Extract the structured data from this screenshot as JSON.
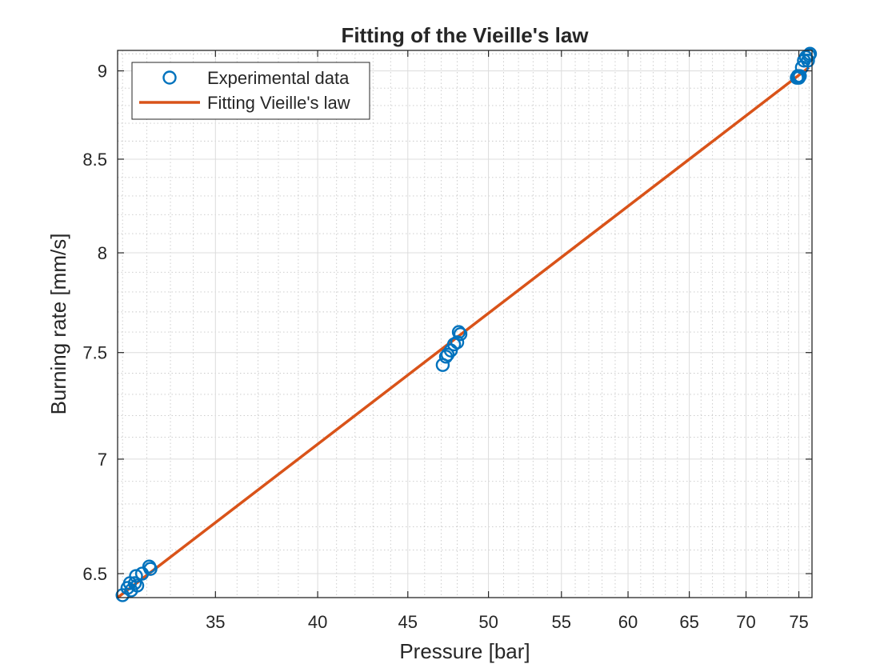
{
  "chart_data": {
    "type": "scatter",
    "title": "Fitting of the Vieille's law",
    "xlabel": "Pressure [bar]",
    "ylabel": "Burning rate [mm/s]",
    "x_scale": "log",
    "y_scale": "log",
    "xlim": [
      30.8,
      76.3
    ],
    "ylim": [
      6.4,
      9.12
    ],
    "xticks": [
      35,
      40,
      45,
      50,
      55,
      60,
      65,
      70,
      75
    ],
    "yticks": [
      6.5,
      7,
      7.5,
      8,
      8.5,
      9
    ],
    "xtick_labels": [
      "35",
      "40",
      "45",
      "50",
      "55",
      "60",
      "65",
      "70",
      "75"
    ],
    "ytick_labels": [
      "6.5",
      "7",
      "7.5",
      "8",
      "8.5",
      "9"
    ],
    "grid": true,
    "minor_grid": true,
    "legend": {
      "position": "top-left",
      "entries": [
        {
          "label": "Experimental data",
          "marker": "circle",
          "color": "#0072BD"
        },
        {
          "label": "Fitting Vieille's law",
          "marker": "line",
          "color": "#D95319"
        }
      ]
    },
    "series": [
      {
        "name": "Experimental data",
        "kind": "scatter",
        "color": "#0072BD",
        "points": [
          [
            31.0,
            6.41
          ],
          [
            31.2,
            6.44
          ],
          [
            31.3,
            6.46
          ],
          [
            31.35,
            6.43
          ],
          [
            31.5,
            6.46
          ],
          [
            31.55,
            6.49
          ],
          [
            31.6,
            6.45
          ],
          [
            31.8,
            6.5
          ],
          [
            32.1,
            6.53
          ],
          [
            32.15,
            6.52
          ],
          [
            47.1,
            7.44
          ],
          [
            47.3,
            7.48
          ],
          [
            47.4,
            7.49
          ],
          [
            47.6,
            7.51
          ],
          [
            47.8,
            7.54
          ],
          [
            48.0,
            7.55
          ],
          [
            48.1,
            7.6
          ],
          [
            48.2,
            7.59
          ],
          [
            74.8,
            8.96
          ],
          [
            74.9,
            8.97
          ],
          [
            75.0,
            8.96
          ],
          [
            75.1,
            8.97
          ],
          [
            75.3,
            9.02
          ],
          [
            75.5,
            9.06
          ],
          [
            75.7,
            9.08
          ],
          [
            75.9,
            9.06
          ],
          [
            76.0,
            9.09
          ],
          [
            76.1,
            9.1
          ]
        ]
      },
      {
        "name": "Fitting Vieille's law",
        "kind": "line",
        "color": "#D95319",
        "points": [
          [
            30.8,
            6.4
          ],
          [
            76.0,
            9.02
          ]
        ]
      }
    ]
  }
}
